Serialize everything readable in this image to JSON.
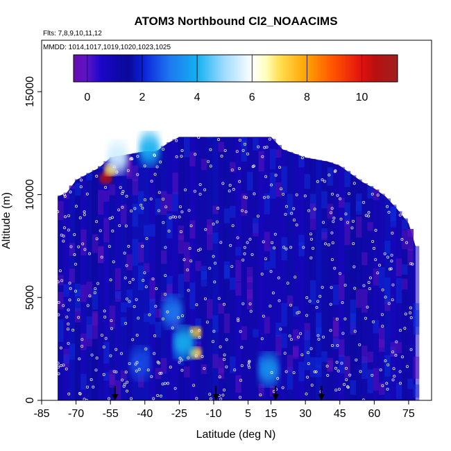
{
  "chart_data": {
    "type": "heatmap",
    "title": "ATOM3 Northbound Cl2_NOAACIMS",
    "flights_text": "Flts: 7,8,9,10,11,12",
    "dates_text": "MMDD: 1014,1017,1019,1020,1023,1025",
    "xlabel": "Latitude (deg N)",
    "ylabel": "Altitude (m)",
    "xlim": [
      -85,
      85
    ],
    "ylim": [
      0,
      17500
    ],
    "x_ticks": [
      -85,
      -70,
      -55,
      -40,
      -25,
      -10,
      5,
      15,
      30,
      45,
      60,
      75
    ],
    "x_tick_labels": [
      "-85",
      "-70",
      "-55",
      "-40",
      "-25",
      "-10",
      "5",
      "15",
      "30",
      "45",
      "60",
      "75"
    ],
    "y_ticks": [
      0,
      5000,
      10000,
      15000
    ],
    "y_tick_labels": [
      "0",
      "5000",
      "10000",
      "15000"
    ],
    "colorbar": {
      "range": [
        -0.5,
        11.3
      ],
      "ticks": [
        0,
        2,
        4,
        6,
        8,
        10
      ],
      "tick_labels": [
        "0",
        "2",
        "4",
        "6",
        "8",
        "10"
      ],
      "colors": [
        [
          -0.5,
          "#6a0dad"
        ],
        [
          0.0,
          "#5a14c8"
        ],
        [
          0.5,
          "#1a06c8"
        ],
        [
          1.5,
          "#0a0a98"
        ],
        [
          2.0,
          "#0a1ed8"
        ],
        [
          3.0,
          "#1e78f0"
        ],
        [
          4.0,
          "#14b0f0"
        ],
        [
          5.0,
          "#a0dcff"
        ],
        [
          6.0,
          "#ffffff"
        ],
        [
          6.5,
          "#ffffc0"
        ],
        [
          7.0,
          "#ffe050"
        ],
        [
          8.0,
          "#ffa000"
        ],
        [
          9.0,
          "#ff5000"
        ],
        [
          10.0,
          "#e01010"
        ],
        [
          10.5,
          "#b81010"
        ],
        [
          11.3,
          "#a02020"
        ]
      ]
    },
    "envelope": {
      "lat": [
        -78,
        -74,
        -70,
        -65,
        -60,
        -55,
        -50,
        -45,
        -40,
        -35,
        -30,
        -25,
        -20,
        -15,
        -10,
        -5,
        0,
        5,
        10,
        15,
        20,
        25,
        30,
        35,
        40,
        45,
        50,
        55,
        60,
        65,
        70,
        75,
        78
      ],
      "top": [
        9900,
        10100,
        10700,
        11000,
        11300,
        11800,
        11900,
        12000,
        12100,
        12100,
        12500,
        12800,
        12800,
        12800,
        12800,
        12800,
        12800,
        12800,
        12800,
        12800,
        12200,
        12000,
        11800,
        11700,
        11600,
        11400,
        11000,
        10600,
        10300,
        9900,
        9300,
        8600,
        7500
      ]
    },
    "enhancements": [
      {
        "lat": -57,
        "alt": 10800,
        "value": 10.5
      },
      {
        "lat": -55,
        "alt": 11200,
        "value": 7.5
      },
      {
        "lat": -52,
        "alt": 11800,
        "value": 5.5
      },
      {
        "lat": -38,
        "alt": 12200,
        "value": 4.0
      },
      {
        "lat": -18,
        "alt": 3300,
        "value": 7.5
      },
      {
        "lat": -18,
        "alt": 2300,
        "value": 7.0
      },
      {
        "lat": -23,
        "alt": 2800,
        "value": 4.0
      },
      {
        "lat": -28,
        "alt": 4300,
        "value": 3.0
      },
      {
        "lat": 14,
        "alt": 1500,
        "value": 3.5
      },
      {
        "lat": -42,
        "alt": 1800,
        "value": 2.5
      }
    ],
    "arrows_lat": [
      -53,
      -9,
      17,
      37
    ],
    "background_value": 1.0
  }
}
